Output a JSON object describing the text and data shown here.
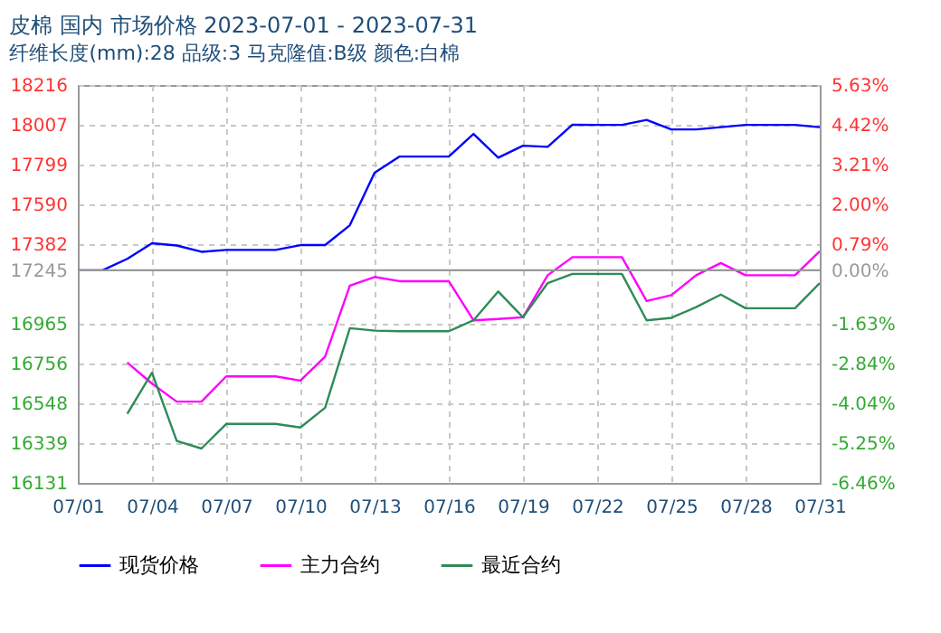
{
  "chart_data": {
    "type": "line",
    "title": "皮棉 国内 市场价格 2023-07-01 - 2023-07-31",
    "subtitle": "纤维长度(mm):28 品级:3 马克隆值:B级 颜色:白棉",
    "x": [
      "2023-07-01",
      "2023-07-02",
      "2023-07-03",
      "2023-07-04",
      "2023-07-05",
      "2023-07-06",
      "2023-07-07",
      "2023-07-08",
      "2023-07-09",
      "2023-07-10",
      "2023-07-11",
      "2023-07-12",
      "2023-07-13",
      "2023-07-14",
      "2023-07-15",
      "2023-07-16",
      "2023-07-17",
      "2023-07-18",
      "2023-07-19",
      "2023-07-20",
      "2023-07-21",
      "2023-07-22",
      "2023-07-23",
      "2023-07-24",
      "2023-07-25",
      "2023-07-26",
      "2023-07-27",
      "2023-07-28",
      "2023-07-29",
      "2023-07-30",
      "2023-07-31"
    ],
    "series": [
      {
        "name": "现货价格",
        "color": "#0000ff",
        "values": [
          17245,
          17245,
          17305,
          17387,
          17375,
          17342,
          17352,
          17352,
          17352,
          17377,
          17377,
          17481,
          17756,
          17841,
          17841,
          17841,
          17960,
          17835,
          17898,
          17892,
          18008,
          18007,
          18007,
          18033,
          17983,
          17983,
          17995,
          18007,
          18007,
          18007,
          17995
        ]
      },
      {
        "name": "主力合约",
        "color": "#ff00ff",
        "values": [
          null,
          null,
          16762,
          16651,
          16557,
          16557,
          16689,
          16689,
          16689,
          16667,
          16793,
          17165,
          17210,
          17188,
          17188,
          17188,
          16983,
          16990,
          16999,
          17219,
          17314,
          17314,
          17314,
          17084,
          17115,
          17219,
          17283,
          17219,
          17219,
          17219,
          17345
        ]
      },
      {
        "name": "最近合约",
        "color": "#2e8b57",
        "values": [
          null,
          null,
          16493,
          16708,
          16351,
          16311,
          16440,
          16440,
          16440,
          16421,
          16525,
          16942,
          16929,
          16926,
          16926,
          16926,
          16983,
          17134,
          16999,
          17178,
          17226,
          17226,
          17226,
          16983,
          16996,
          17052,
          17118,
          17046,
          17046,
          17046,
          17178
        ]
      }
    ],
    "xlim": [
      "2023-07-01",
      "2023-07-31"
    ],
    "xticks": [
      {
        "value": "2023-07-01",
        "label": "07/01"
      },
      {
        "value": "2023-07-04",
        "label": "07/04"
      },
      {
        "value": "2023-07-07",
        "label": "07/07"
      },
      {
        "value": "2023-07-10",
        "label": "07/10"
      },
      {
        "value": "2023-07-13",
        "label": "07/13"
      },
      {
        "value": "2023-07-16",
        "label": "07/16"
      },
      {
        "value": "2023-07-19",
        "label": "07/19"
      },
      {
        "value": "2023-07-22",
        "label": "07/22"
      },
      {
        "value": "2023-07-25",
        "label": "07/25"
      },
      {
        "value": "2023-07-28",
        "label": "07/28"
      },
      {
        "value": "2023-07-31",
        "label": "07/31"
      }
    ],
    "ylim": [
      16131,
      18216
    ],
    "yticks": [
      16131,
      16339,
      16548,
      16756,
      16965,
      17245,
      17382,
      17590,
      17799,
      18007,
      18216
    ],
    "y2lim": [
      -6.46,
      5.63
    ],
    "y2ticks": [
      {
        "value": -6.46,
        "label": "-6.46%"
      },
      {
        "value": -5.25,
        "label": "-5.25%"
      },
      {
        "value": -4.04,
        "label": "-4.04%"
      },
      {
        "value": -2.84,
        "label": "-2.84%"
      },
      {
        "value": -1.63,
        "label": "-1.63%"
      },
      {
        "value": 0,
        "label": "0.00%"
      },
      {
        "value": 0.79,
        "label": "0.79%"
      },
      {
        "value": 2.0,
        "label": "2.00%"
      },
      {
        "value": 3.21,
        "label": "3.21%"
      },
      {
        "value": 4.42,
        "label": "4.42%"
      },
      {
        "value": 5.63,
        "label": "5.63%"
      }
    ],
    "ref_lines": [
      {
        "axis": "y",
        "value": 17245,
        "color": "#999999",
        "line_style": "solid"
      }
    ],
    "grid": true,
    "legend": "bottom",
    "marker": "none",
    "line_style": "solid"
  }
}
